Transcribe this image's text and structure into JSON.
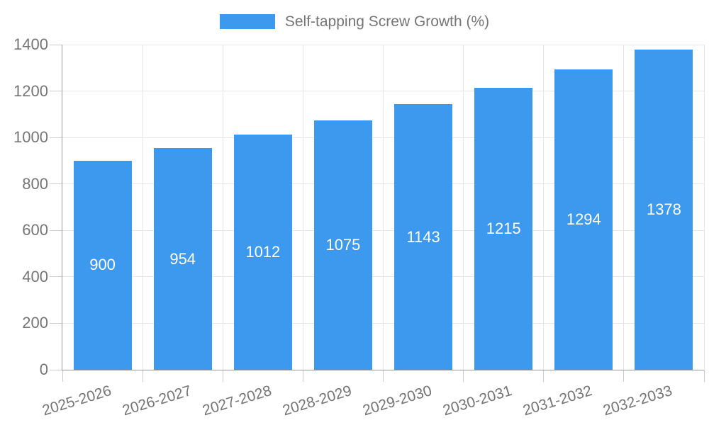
{
  "chart_data": {
    "type": "bar",
    "title": "",
    "legend": "Self-tapping Screw Growth (%)",
    "legend_position": "top-center",
    "categories": [
      "2025-2026",
      "2026-2027",
      "2027-2028",
      "2028-2029",
      "2029-2030",
      "2030-2031",
      "2031-2032",
      "2032-2033"
    ],
    "values": [
      900,
      954,
      1012,
      1075,
      1143,
      1215,
      1294,
      1378
    ],
    "xlabel": "",
    "ylabel": "",
    "ylim": [
      0,
      1400
    ],
    "yticks": [
      0,
      200,
      400,
      600,
      800,
      1000,
      1200,
      1400
    ],
    "grid": true,
    "value_labels_shown": true,
    "colors": {
      "bar": "#3C99ED",
      "axis_text": "#757575",
      "value_text": "#ffffff",
      "axis_line": "#999999",
      "tick_line": "#cccccc",
      "grid_line": "#e6e6e6",
      "background": "#ffffff"
    }
  }
}
